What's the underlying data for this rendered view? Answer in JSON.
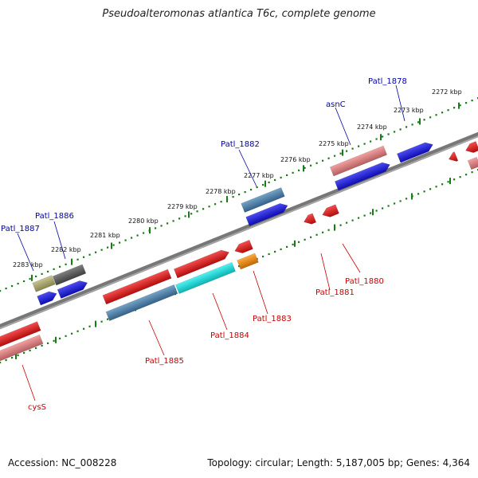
{
  "title": "Pseudoalteromonas atlantica T6c, complete genome",
  "footer": {
    "accession": "Accession: NC_008228",
    "topology": "Topology: circular; Length: 5,187,005 bp; Genes: 4,364"
  },
  "colors": {
    "backbone": "#777777",
    "tick": "#1a7a1a",
    "red": "#ee1111",
    "pink": "#f08080",
    "blue": "#1111ee",
    "steel": "#4682b4",
    "cyan": "#11eeee",
    "orange": "#ff8c00",
    "olive": "#b5b06a",
    "gray": "#555555",
    "label_blue": "#0000aa",
    "label_red": "#cc0000"
  },
  "scale_labels": [
    "2272 kbp",
    "2273 kbp",
    "2274 kbp",
    "2275 kbp",
    "2276 kbp",
    "2277 kbp",
    "2278 kbp",
    "2279 kbp",
    "2280 kbp",
    "2281 kbp",
    "2282 kbp",
    "2283 kbp"
  ],
  "gene_labels_top": [
    "Patl_1878",
    "asnC",
    "Patl_1882",
    "Patl_1886",
    "Patl_1887"
  ],
  "gene_labels_bottom": [
    "Patl_1880",
    "Patl_1881",
    "Patl_1883",
    "Patl_1884",
    "Patl_1885",
    "cysS"
  ]
}
